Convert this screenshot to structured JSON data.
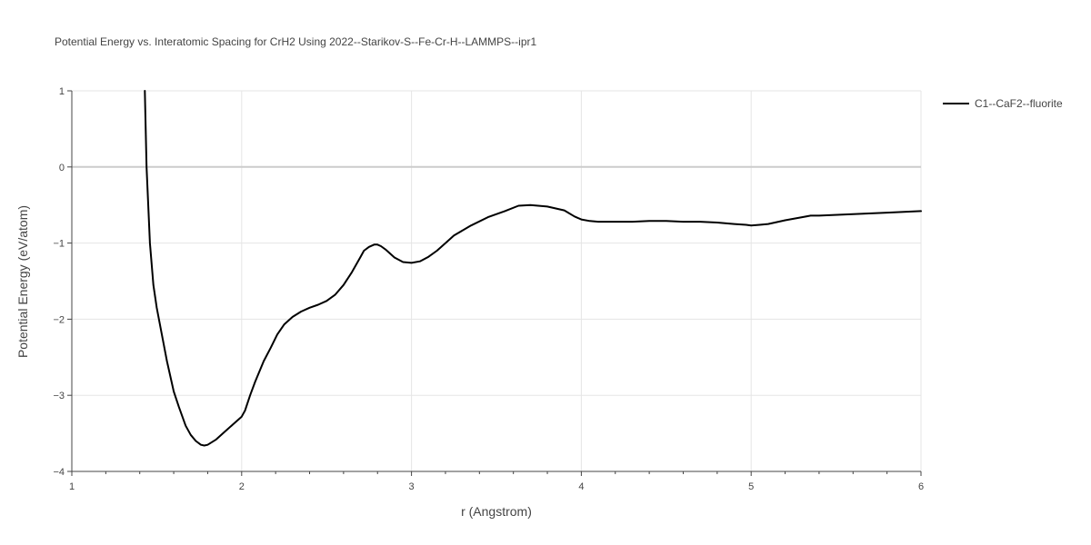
{
  "chart_data": {
    "type": "line",
    "title": "Potential Energy vs. Interatomic Spacing for CrH2 Using 2022--Starikov-S--Fe-Cr-H--LAMMPS--ipr1",
    "xlabel": "r (Angstrom)",
    "ylabel": "Potential Energy (eV/atom)",
    "xlim": [
      1,
      6
    ],
    "ylim": [
      -4,
      1
    ],
    "xticks": [
      1,
      2,
      3,
      4,
      5,
      6
    ],
    "xtick_labels": [
      "1",
      "2",
      "3",
      "4",
      "5",
      "6"
    ],
    "yticks": [
      1,
      0,
      -1,
      -2,
      -3,
      -4
    ],
    "ytick_labels": [
      "1",
      "0",
      "−1",
      "−2",
      "−3",
      "−4"
    ],
    "grid": true,
    "legend_position": "top-right",
    "line_color": "#000000",
    "series": [
      {
        "name": "C1--CaF2--fluorite",
        "x": [
          1.43,
          1.44,
          1.46,
          1.48,
          1.5,
          1.53,
          1.56,
          1.6,
          1.63,
          1.67,
          1.7,
          1.73,
          1.76,
          1.78,
          1.8,
          1.85,
          1.9,
          1.95,
          2.0,
          2.02,
          2.05,
          2.08,
          2.13,
          2.17,
          2.21,
          2.25,
          2.3,
          2.35,
          2.4,
          2.45,
          2.5,
          2.55,
          2.6,
          2.65,
          2.7,
          2.72,
          2.75,
          2.78,
          2.8,
          2.82,
          2.85,
          2.9,
          2.95,
          3.0,
          3.05,
          3.1,
          3.15,
          3.2,
          3.25,
          3.35,
          3.45,
          3.55,
          3.63,
          3.7,
          3.8,
          3.9,
          3.96,
          4.0,
          4.05,
          4.1,
          4.2,
          4.3,
          4.4,
          4.5,
          4.6,
          4.7,
          4.8,
          4.9,
          4.97,
          5.0,
          5.05,
          5.1,
          5.2,
          5.3,
          5.35,
          5.4,
          5.6,
          5.8,
          6.0
        ],
        "values": [
          1.0,
          0.0,
          -1.0,
          -1.55,
          -1.85,
          -2.2,
          -2.55,
          -2.95,
          -3.15,
          -3.4,
          -3.52,
          -3.6,
          -3.65,
          -3.66,
          -3.65,
          -3.58,
          -3.48,
          -3.38,
          -3.28,
          -3.2,
          -3.0,
          -2.82,
          -2.55,
          -2.38,
          -2.2,
          -2.07,
          -1.97,
          -1.9,
          -1.85,
          -1.81,
          -1.76,
          -1.68,
          -1.55,
          -1.38,
          -1.18,
          -1.1,
          -1.05,
          -1.02,
          -1.02,
          -1.04,
          -1.09,
          -1.19,
          -1.25,
          -1.26,
          -1.24,
          -1.18,
          -1.1,
          -1.0,
          -0.9,
          -0.77,
          -0.66,
          -0.58,
          -0.51,
          -0.5,
          -0.52,
          -0.57,
          -0.65,
          -0.69,
          -0.71,
          -0.72,
          -0.72,
          -0.72,
          -0.71,
          -0.71,
          -0.72,
          -0.72,
          -0.73,
          -0.75,
          -0.76,
          -0.77,
          -0.76,
          -0.75,
          -0.7,
          -0.66,
          -0.64,
          -0.64,
          -0.62,
          -0.6,
          -0.58
        ]
      }
    ]
  }
}
